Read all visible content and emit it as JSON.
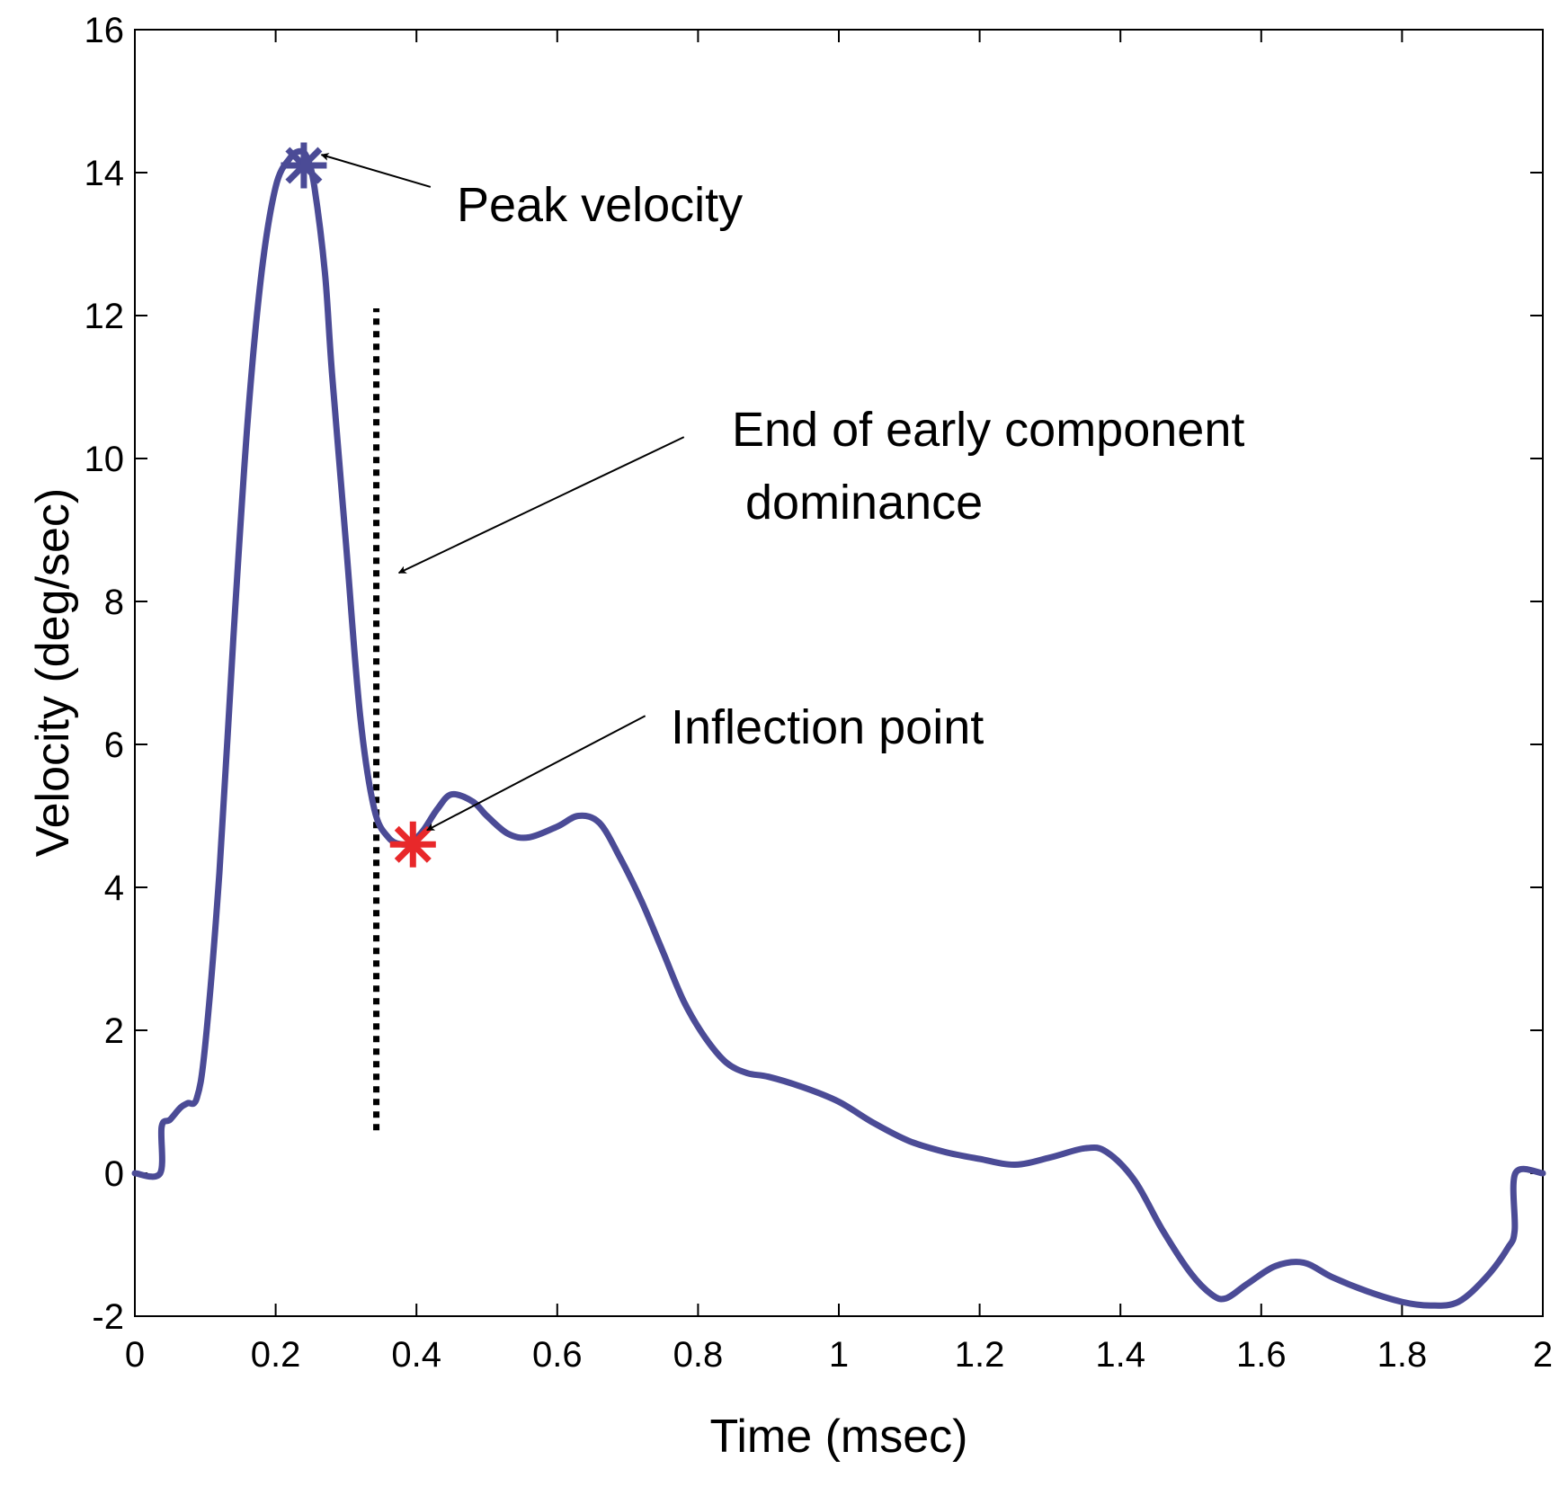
{
  "chart_data": {
    "type": "line",
    "title": "",
    "xlabel": "Time (msec)",
    "ylabel": "Velocity (deg/sec)",
    "xlim": [
      0,
      2
    ],
    "ylim": [
      -2,
      16
    ],
    "xticks": [
      0,
      0.2,
      0.4,
      0.6,
      0.8,
      1,
      1.2,
      1.4,
      1.6,
      1.8,
      2
    ],
    "xtick_labels": [
      "0",
      "0.2",
      "0.4",
      "0.6",
      "0.8",
      "1",
      "1.2",
      "1.4",
      "1.6",
      "1.8",
      "2"
    ],
    "yticks": [
      -2,
      0,
      2,
      4,
      6,
      8,
      10,
      12,
      14,
      16
    ],
    "ytick_labels": [
      "-2",
      "0",
      "2",
      "4",
      "6",
      "8",
      "10",
      "12",
      "14",
      "16"
    ],
    "grid": false,
    "series": [
      {
        "color": "#4b4b96",
        "x": [
          0,
          0.036,
          0.038,
          0.05,
          0.065,
          0.075,
          0.088,
          0.1,
          0.12,
          0.14,
          0.16,
          0.18,
          0.2,
          0.22,
          0.235,
          0.245,
          0.255,
          0.27,
          0.28,
          0.3,
          0.32,
          0.34,
          0.36,
          0.38,
          0.395,
          0.41,
          0.43,
          0.45,
          0.48,
          0.5,
          0.53,
          0.56,
          0.6,
          0.63,
          0.66,
          0.69,
          0.72,
          0.75,
          0.78,
          0.81,
          0.84,
          0.87,
          0.9,
          0.95,
          1.0,
          1.05,
          1.1,
          1.15,
          1.2,
          1.25,
          1.3,
          1.35,
          1.38,
          1.42,
          1.46,
          1.5,
          1.53,
          1.55,
          1.58,
          1.62,
          1.66,
          1.7,
          1.75,
          1.8,
          1.84,
          1.88,
          1.92,
          1.95,
          1.96,
          1.961,
          2.0
        ],
        "y": [
          0,
          0,
          0.65,
          0.75,
          0.92,
          0.98,
          1.05,
          1.8,
          4.2,
          7.5,
          10.5,
          12.6,
          13.8,
          14.2,
          14.3,
          14.2,
          13.8,
          12.6,
          11.2,
          8.8,
          6.4,
          5.1,
          4.7,
          4.6,
          4.65,
          4.8,
          5.1,
          5.3,
          5.2,
          5.0,
          4.75,
          4.7,
          4.85,
          5.0,
          4.9,
          4.4,
          3.8,
          3.1,
          2.4,
          1.9,
          1.55,
          1.4,
          1.35,
          1.2,
          1.0,
          0.7,
          0.45,
          0.3,
          0.2,
          0.12,
          0.22,
          0.35,
          0.3,
          -0.1,
          -0.8,
          -1.4,
          -1.7,
          -1.75,
          -1.55,
          -1.3,
          -1.25,
          -1.45,
          -1.65,
          -1.8,
          -1.85,
          -1.8,
          -1.45,
          -1.05,
          -0.8,
          0,
          0
        ]
      }
    ],
    "markers": [
      {
        "name": "Peak velocity",
        "x": 0.24,
        "y": 14.1,
        "symbol": "asterisk",
        "color": "#4b4b96"
      },
      {
        "name": "Inflection point",
        "x": 0.395,
        "y": 4.6,
        "symbol": "asterisk",
        "color": "#e8282a"
      }
    ],
    "reference_lines": [
      {
        "name": "End of early component dominance",
        "x": 0.343,
        "y_from": 0.6,
        "y_to": 12.1,
        "style": "dotted",
        "color": "#000000"
      }
    ],
    "annotations": [
      {
        "text_lines": [
          "Peak velocity"
        ],
        "arrow_from": [
          0.42,
          13.8
        ],
        "arrow_to": [
          0.265,
          14.25
        ]
      },
      {
        "text_lines": [
          "End of early component",
          " dominance"
        ],
        "arrow_from": [
          0.78,
          10.3
        ],
        "arrow_to": [
          0.375,
          8.4
        ]
      },
      {
        "text_lines": [
          "Inflection point"
        ],
        "arrow_from": [
          0.725,
          6.4
        ],
        "arrow_to": [
          0.415,
          4.8
        ]
      }
    ]
  }
}
